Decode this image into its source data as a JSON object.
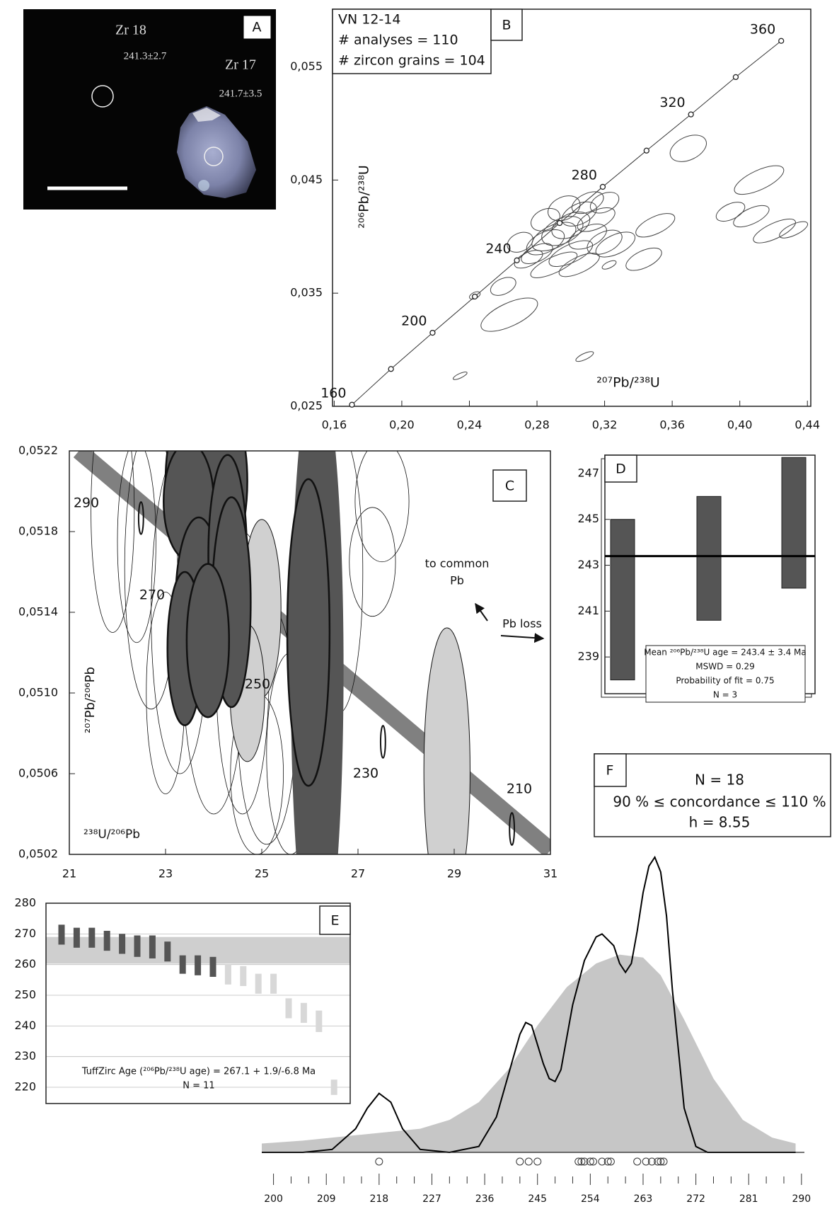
{
  "image_panel": {
    "label": "A",
    "annotations": [
      "Zr 18",
      "241.3±2.7",
      "Zr 17",
      "241.7±3.5"
    ]
  },
  "info_box": {
    "label": "F",
    "lines": [
      "N = 18",
      "90 % ≤ concordance ≤ 110 %",
      "h = 8.55"
    ]
  },
  "chart_data": [
    {
      "type": "concordia",
      "panel_label": "B",
      "title_lines": [
        "VN 12-14",
        "# analyses = 110",
        "# zircon grains = 104"
      ],
      "xlabel": "²⁰⁷Pb/²³⁸U",
      "ylabel": "²⁰⁶Pb/²³⁸U",
      "xlim": [
        0.159,
        0.442
      ],
      "ylim": [
        0.025,
        0.0601
      ],
      "xticks": [
        {
          "value": 0.16,
          "label": "0,16"
        },
        {
          "value": 0.2,
          "label": "0,20"
        },
        {
          "value": 0.24,
          "label": "0,24"
        },
        {
          "value": 0.28,
          "label": "0,28"
        },
        {
          "value": 0.32,
          "label": "0,32"
        },
        {
          "value": 0.36,
          "label": "0,36"
        },
        {
          "value": 0.4,
          "label": "0,40"
        },
        {
          "value": 0.44,
          "label": "0,44"
        }
      ],
      "yticks": [
        {
          "value": 0.025,
          "label": "0,025"
        },
        {
          "value": 0.035,
          "label": "0,035"
        },
        {
          "value": 0.045,
          "label": "0,045"
        },
        {
          "value": 0.055,
          "label": "0,055"
        }
      ],
      "concordia": {
        "x": [
          0.1705,
          0.1936,
          0.2182,
          0.2432,
          0.2681,
          0.2934,
          0.3189,
          0.3448,
          0.3711,
          0.3976,
          0.4245
        ],
        "y": [
          0.02514,
          0.0283,
          0.0315,
          0.0347,
          0.0379,
          0.0412,
          0.0444,
          0.0476,
          0.0508,
          0.0541,
          0.0573
        ],
        "labels": [
          160,
          null,
          200,
          null,
          240,
          null,
          280,
          null,
          320,
          null,
          360
        ]
      },
      "ellipses": {
        "angle": -25,
        "x": [
          0.4114,
          0.3945,
          0.4068,
          0.4205,
          0.4318,
          0.3695,
          0.35,
          0.3432,
          0.3264,
          0.3227,
          0.26,
          0.2636,
          0.2432,
          0.3082,
          0.2345,
          0.285,
          0.29,
          0.295,
          0.3,
          0.305,
          0.31,
          0.28,
          0.275,
          0.3,
          0.31,
          0.315,
          0.32,
          0.29,
          0.305,
          0.296,
          0.285,
          0.32,
          0.27
        ],
        "y": [
          0.045,
          0.0422,
          0.0418,
          0.0405,
          0.0406,
          0.0478,
          0.041,
          0.038,
          0.0393,
          0.0375,
          0.0356,
          0.0331,
          0.0348,
          0.0294,
          0.0277,
          0.0395,
          0.04,
          0.0405,
          0.041,
          0.042,
          0.043,
          0.0385,
          0.038,
          0.0385,
          0.04,
          0.0415,
          0.043,
          0.0375,
          0.0375,
          0.0425,
          0.0415,
          0.0395,
          0.0395
        ],
        "rx": [
          0.0159,
          0.0091,
          0.0114,
          0.0136,
          0.0091,
          0.0114,
          0.0125,
          0.0114,
          0.0125,
          0.0045,
          0.008,
          0.0182,
          0.0034,
          0.0057,
          0.0045,
          0.012,
          0.014,
          0.013,
          0.012,
          0.011,
          0.01,
          0.01,
          0.009,
          0.014,
          0.012,
          0.012,
          0.009,
          0.015,
          0.013,
          0.01,
          0.009,
          0.011,
          0.008
        ],
        "ry": [
          0.00085,
          0.00068,
          0.00068,
          0.00068,
          0.00048,
          0.00102,
          0.00075,
          0.00075,
          0.00085,
          0.00027,
          0.00068,
          0.00102,
          0.00027,
          0.00027,
          0.0002,
          0.0009,
          0.001,
          0.0011,
          0.001,
          0.0009,
          0.0008,
          0.0007,
          0.0006,
          0.0008,
          0.0009,
          0.0008,
          0.0008,
          0.0007,
          0.0007,
          0.001,
          0.0009,
          0.0009,
          0.0008
        ]
      }
    },
    {
      "type": "tera-wasserburg",
      "panel_label": "C",
      "xlabel": "²³⁸U/²⁰⁶Pb",
      "ylabel": "²⁰⁷Pb/²⁰⁶Pb",
      "xlim": [
        21,
        31
      ],
      "ylim": [
        0.0502,
        0.0522
      ],
      "xticks": [
        21,
        23,
        25,
        27,
        29,
        31
      ],
      "yticks": [
        {
          "value": 0.0502,
          "label": "0,0502"
        },
        {
          "value": 0.0506,
          "label": "0,0506"
        },
        {
          "value": 0.051,
          "label": "0,0510"
        },
        {
          "value": 0.0514,
          "label": "0,0514"
        },
        {
          "value": 0.0518,
          "label": "0,0518"
        },
        {
          "value": 0.0522,
          "label": "0,0522"
        }
      ],
      "concordia": {
        "color": "#808080",
        "x": [
          21.2,
          31
        ],
        "y": [
          0.0522,
          0.05022
        ]
      },
      "age_labels": [
        290,
        270,
        250,
        230,
        210
      ],
      "common_pb_label": [
        "to common",
        "Pb"
      ],
      "pb_loss_label": "Pb loss",
      "ellipse_groups": [
        {
          "color": "none",
          "stroke_width": 0.8,
          "x": [
            21.9,
            22.7,
            23.3,
            24.0,
            24.6,
            25.1,
            25.6,
            27.3,
            27.5,
            23.0,
            22.4,
            26.6,
            24.9
          ],
          "y": [
            0.0519,
            0.05162,
            0.0514,
            0.0512,
            0.0511,
            0.05085,
            0.0507,
            0.05165,
            0.05195,
            0.051,
            0.05175,
            0.0516,
            0.0506
          ],
          "rx": [
            0.45,
            0.55,
            0.6,
            0.65,
            0.55,
            0.6,
            0.5,
            0.48,
            0.56,
            0.4,
            0.4,
            0.5,
            0.55
          ],
          "ry": [
            0.0006,
            0.0007,
            0.0008,
            0.0008,
            0.0007,
            0.0006,
            0.0005,
            0.00027,
            0.0003,
            0.0005,
            0.0005,
            0.0007,
            0.0004
          ]
        },
        {
          "color": "#d0d0d0",
          "stroke_width": 1,
          "x": [
            25.0,
            24.7,
            28.85
          ],
          "y": [
            0.05142,
            0.051,
            0.050613
          ],
          "rx": [
            0.4,
            0.36,
            0.48
          ],
          "ry": [
            0.00044,
            0.00034,
            0.00071
          ]
        },
        {
          "color": "#555555",
          "stroke_width": 0,
          "x": [
            26.15
          ],
          "y": [
            0.05112
          ],
          "rx": [
            0.55
          ],
          "ry": [
            0.0015
          ]
        },
        {
          "color": "#555555",
          "stroke_width": 2.5,
          "x": [
            23.85,
            23.48,
            23.69,
            24.29,
            24.37,
            23.4,
            23.88,
            25.97
          ],
          "y": [
            0.05205,
            0.05195,
            0.05145,
            0.05168,
            0.05145,
            0.05122,
            0.05126,
            0.0513
          ],
          "rx": [
            0.85,
            0.52,
            0.48,
            0.4,
            0.4,
            0.36,
            0.44,
            0.44
          ],
          "ry": [
            0.0005,
            0.00029,
            0.00042,
            0.0005,
            0.00052,
            0.00038,
            0.00038,
            0.00076
          ]
        },
        {
          "color": "none",
          "stroke_width": 2,
          "x": [
            22.49,
            27.52,
            30.2
          ],
          "y": [
            0.051867,
            0.050758,
            0.050326
          ],
          "rx": [
            0.05,
            0.05,
            0.05
          ],
          "ry": [
            8e-05,
            8e-05,
            8e-05
          ]
        }
      ]
    },
    {
      "type": "weighted-mean",
      "panel_label": "D",
      "ylim": [
        237.4,
        247.8
      ],
      "yticks": [
        239,
        241,
        243,
        245,
        247
      ],
      "low": [
        238,
        240.6,
        242
      ],
      "high": [
        245,
        246,
        247.7
      ],
      "mean": 243.4,
      "color": "#555555",
      "annotation_lines": [
        "Mean ²⁰⁶Pb/²³⁸U age = 243.4 ± 3.4 Ma",
        "MSWD = 0.29",
        "Probability of fit = 0.75",
        "N = 3"
      ]
    },
    {
      "type": "ranked-bars",
      "panel_label": "E",
      "ylim": [
        214.7,
        280
      ],
      "yticks": [
        220,
        230,
        240,
        250,
        260,
        270,
        280
      ],
      "band": [
        260.3,
        269.0
      ],
      "band_color": "#cfcfcf",
      "series": [
        {
          "color": "#555555",
          "low": [
            266.5,
            265.5,
            265.5,
            264.5,
            263.5,
            262.5,
            262,
            261,
            257,
            256.5,
            256
          ],
          "high": [
            273,
            272,
            272,
            271,
            270,
            269.5,
            269.5,
            267.5,
            263,
            263,
            262.5
          ]
        },
        {
          "color": "#d8d8d8",
          "low": [
            253.5,
            253,
            250.5,
            250.5,
            242.5,
            241,
            238,
            217.5
          ],
          "high": [
            260,
            259.5,
            257,
            257,
            249,
            247.5,
            245,
            222.5
          ]
        }
      ],
      "annotation_lines": [
        "TuffZirc Age (²⁰⁶Pb/²³⁸U age) = 267.1 + 1.9/-6.8 Ma",
        "N = 11"
      ]
    },
    {
      "type": "density",
      "xlim": [
        198,
        290.5
      ],
      "xticks": [
        200,
        209,
        218,
        227,
        236,
        245,
        254,
        263,
        272,
        281,
        290
      ],
      "xminor": [
        203,
        206,
        212,
        215,
        221,
        224,
        230,
        233,
        239,
        242,
        248,
        251,
        257,
        260,
        266,
        269,
        275,
        278,
        284,
        287
      ],
      "series": [
        {
          "style": "area",
          "color": "#c6c6c6",
          "x": [
            198,
            205,
            215,
            225,
            230,
            235,
            240,
            245,
            250,
            255,
            259,
            263,
            266,
            270,
            275,
            280,
            285,
            289
          ],
          "values": [
            3,
            4,
            6,
            8,
            11,
            17,
            28,
            43,
            56,
            64,
            67,
            66,
            60,
            45,
            25,
            11,
            5,
            3
          ]
        },
        {
          "style": "line",
          "color": "#000000",
          "x": [
            198,
            205,
            210,
            214,
            216,
            218,
            220,
            222,
            225,
            230,
            235,
            238,
            240,
            242,
            243,
            244,
            246,
            247,
            248,
            249,
            251,
            253,
            255,
            256,
            258,
            259,
            260,
            261,
            262,
            263,
            264,
            265,
            266,
            267,
            268,
            270,
            272,
            274,
            276,
            280,
            289
          ],
          "values": [
            0,
            0,
            1,
            8,
            15,
            20,
            17,
            8,
            1,
            0,
            2,
            12,
            26,
            40,
            44,
            43,
            30,
            25,
            24,
            28,
            50,
            65,
            73,
            74,
            70,
            64,
            61,
            64,
            75,
            88,
            97,
            100,
            95,
            80,
            55,
            15,
            2,
            0,
            0,
            0,
            0
          ]
        }
      ],
      "points": [
        218,
        242,
        243.5,
        245,
        252,
        252.5,
        253,
        254,
        254.5,
        256,
        257,
        257.5,
        262,
        263.5,
        264.5,
        265.5,
        266,
        266.5
      ]
    }
  ]
}
